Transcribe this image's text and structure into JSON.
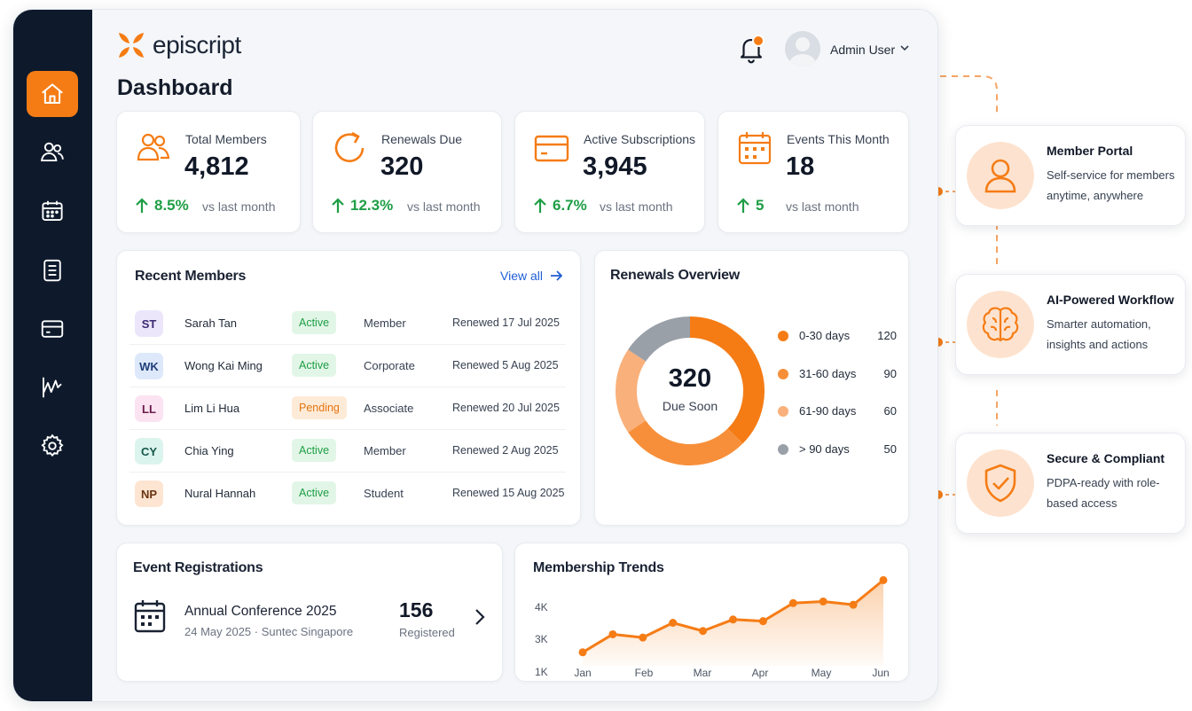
{
  "brand": {
    "name": "episcript",
    "accent": "#f57c15",
    "sidebar_bg": "#0e1a2c"
  },
  "header": {
    "title": "Dashboard",
    "user_name": "Admin User",
    "notification_icon": "bell-icon"
  },
  "sidebar": {
    "items": [
      {
        "name": "home",
        "icon": "home-icon",
        "active": true
      },
      {
        "name": "members",
        "icon": "users-icon"
      },
      {
        "name": "events",
        "icon": "calendar-icon"
      },
      {
        "name": "documents",
        "icon": "document-icon"
      },
      {
        "name": "billing",
        "icon": "card-icon"
      },
      {
        "name": "analytics",
        "icon": "chart-icon"
      },
      {
        "name": "settings",
        "icon": "gear-icon"
      }
    ]
  },
  "stats": [
    {
      "label": "Total Members",
      "value": "4,812",
      "trend": "8.5%",
      "vs": "vs last month",
      "icon": "users-icon"
    },
    {
      "label": "Renewals Due",
      "value": "320",
      "trend": "12.3%",
      "vs": "vs last month",
      "icon": "refresh-icon"
    },
    {
      "label": "Active Subscriptions",
      "value": "3,945",
      "trend": "6.7%",
      "vs": "vs last month",
      "icon": "card-icon"
    },
    {
      "label": "Events This Month",
      "value": "18",
      "trend": "5",
      "vs": "vs last month",
      "icon": "calendar-icon"
    }
  ],
  "recent_members": {
    "title": "Recent Members",
    "view_all": "View all",
    "rows": [
      {
        "initials": "ST",
        "name": "Sarah Tan",
        "status": "Active",
        "type": "Member",
        "renewed": "Renewed 17 Jul 2025",
        "bg": "#ece6fb",
        "fg": "#3b2a73"
      },
      {
        "initials": "WK",
        "name": "Wong Kai Ming",
        "status": "Active",
        "type": "Corporate",
        "renewed": "Renewed 5 Aug 2025",
        "bg": "#dde9fb",
        "fg": "#1f3d78"
      },
      {
        "initials": "LL",
        "name": "Lim Li Hua",
        "status": "Pending",
        "type": "Associate",
        "renewed": "Renewed 20 Jul 2025",
        "bg": "#fbe3f1",
        "fg": "#6b1d4a"
      },
      {
        "initials": "CY",
        "name": "Chia Ying",
        "status": "Active",
        "type": "Member",
        "renewed": "Renewed 2 Aug 2025",
        "bg": "#dcf4ee",
        "fg": "#15574a"
      },
      {
        "initials": "NP",
        "name": "Nural Hannah",
        "status": "Active",
        "type": "Student",
        "renewed": "Renewed 15 Aug 2025",
        "bg": "#fde5d2",
        "fg": "#6a3410"
      }
    ]
  },
  "renewals": {
    "title": "Renewals Overview",
    "center_value": "320",
    "center_label": "Due Soon",
    "legend": [
      {
        "label": "0-30 days",
        "value": 120,
        "color": "#f57c15"
      },
      {
        "label": "31-60 days",
        "value": 90,
        "color": "#f78f3a"
      },
      {
        "label": "61-90 days",
        "value": 60,
        "color": "#f9b07a"
      },
      {
        "label": "> 90 days",
        "value": 50,
        "color": "#9aa0a8"
      }
    ]
  },
  "event_registrations": {
    "title": "Event Registrations",
    "event_name": "Annual Conference 2025",
    "event_sub": "24 May 2025 · Suntec Singapore",
    "count": "156",
    "count_label": "Registered"
  },
  "chart_data": {
    "type": "area",
    "title": "Membership Trends",
    "x_ticks": [
      "Jan",
      "Feb",
      "Mar",
      "Apr",
      "May",
      "Jun"
    ],
    "y_ticks": [
      "4K",
      "3K",
      "1K"
    ],
    "x": [
      0,
      0.5,
      1,
      1.5,
      2,
      2.5,
      3,
      3.5,
      4,
      4.5,
      5
    ],
    "values": [
      2600,
      3150,
      3050,
      3500,
      3250,
      3600,
      3550,
      4100,
      4150,
      4050,
      4800
    ],
    "color": "#f57c15"
  },
  "features": [
    {
      "title": "Member Portal",
      "desc": "Self-service for members anytime, anywhere",
      "icon": "person-icon"
    },
    {
      "title": "AI-Powered Workflow",
      "desc": "Smarter automation, insights and actions",
      "icon": "brain-icon"
    },
    {
      "title": "Secure & Compliant",
      "desc": "PDPA-ready with role-based access",
      "icon": "shield-check-icon"
    }
  ]
}
